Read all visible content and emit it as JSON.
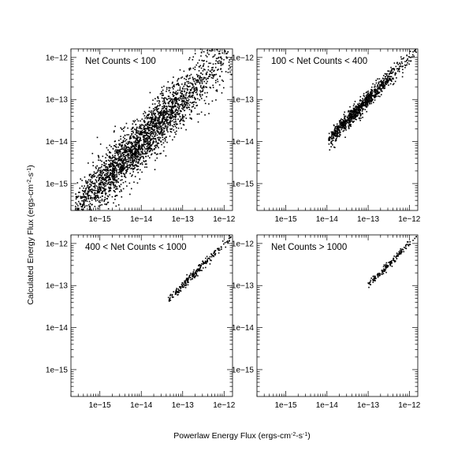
{
  "chart_data": {
    "type": "scatter",
    "xlabel": "Powerlaw Energy Flux (ergs-cm",
    "xlabel_sup1": "-2",
    "xlabel_mid": "-s",
    "xlabel_sup2": "-1",
    "xlabel_end": ")",
    "ylabel": "Calculated Energy Flux (ergs-cm",
    "ylabel_sup1": "-2",
    "ylabel_mid": "-s",
    "ylabel_sup2": "-1",
    "ylabel_end": ")",
    "xscale": "log",
    "yscale": "log",
    "xlim": [
      2e-16,
      1.6e-12
    ],
    "ylim": [
      2.3e-16,
      1.6e-12
    ],
    "xticks": [
      {
        "value": 1e-15,
        "label": "1e−15"
      },
      {
        "value": 1e-14,
        "label": "1e−14"
      },
      {
        "value": 1e-13,
        "label": "1e−13"
      },
      {
        "value": 1e-12,
        "label": "1e−12"
      }
    ],
    "yticks": [
      {
        "value": 1e-15,
        "label": "1e−15"
      },
      {
        "value": 1e-14,
        "label": "1e−14"
      },
      {
        "value": 1e-13,
        "label": "1e−13"
      },
      {
        "value": 1e-12,
        "label": "1e−12"
      }
    ],
    "marker_color": "#000000",
    "panels": [
      {
        "label": "Net Counts < 100",
        "x_range": [
          2.5e-16,
          1.5e-12
        ],
        "n_points": 2600,
        "scatter_dex": 0.32,
        "density_center": 8e-15
      },
      {
        "label": "100 < Net Counts < 400",
        "x_range": [
          1.1e-14,
          1.5e-12
        ],
        "n_points": 900,
        "scatter_dex": 0.1,
        "density_center": 5e-14
      },
      {
        "label": "400 < Net Counts < 1000",
        "x_range": [
          4.5e-14,
          1.5e-12
        ],
        "n_points": 220,
        "scatter_dex": 0.05,
        "density_center": 1.8e-13
      },
      {
        "label": "Net Counts > 1000",
        "x_range": [
          1e-13,
          1.5e-12
        ],
        "n_points": 160,
        "scatter_dex": 0.04,
        "density_center": 3e-13
      }
    ]
  }
}
